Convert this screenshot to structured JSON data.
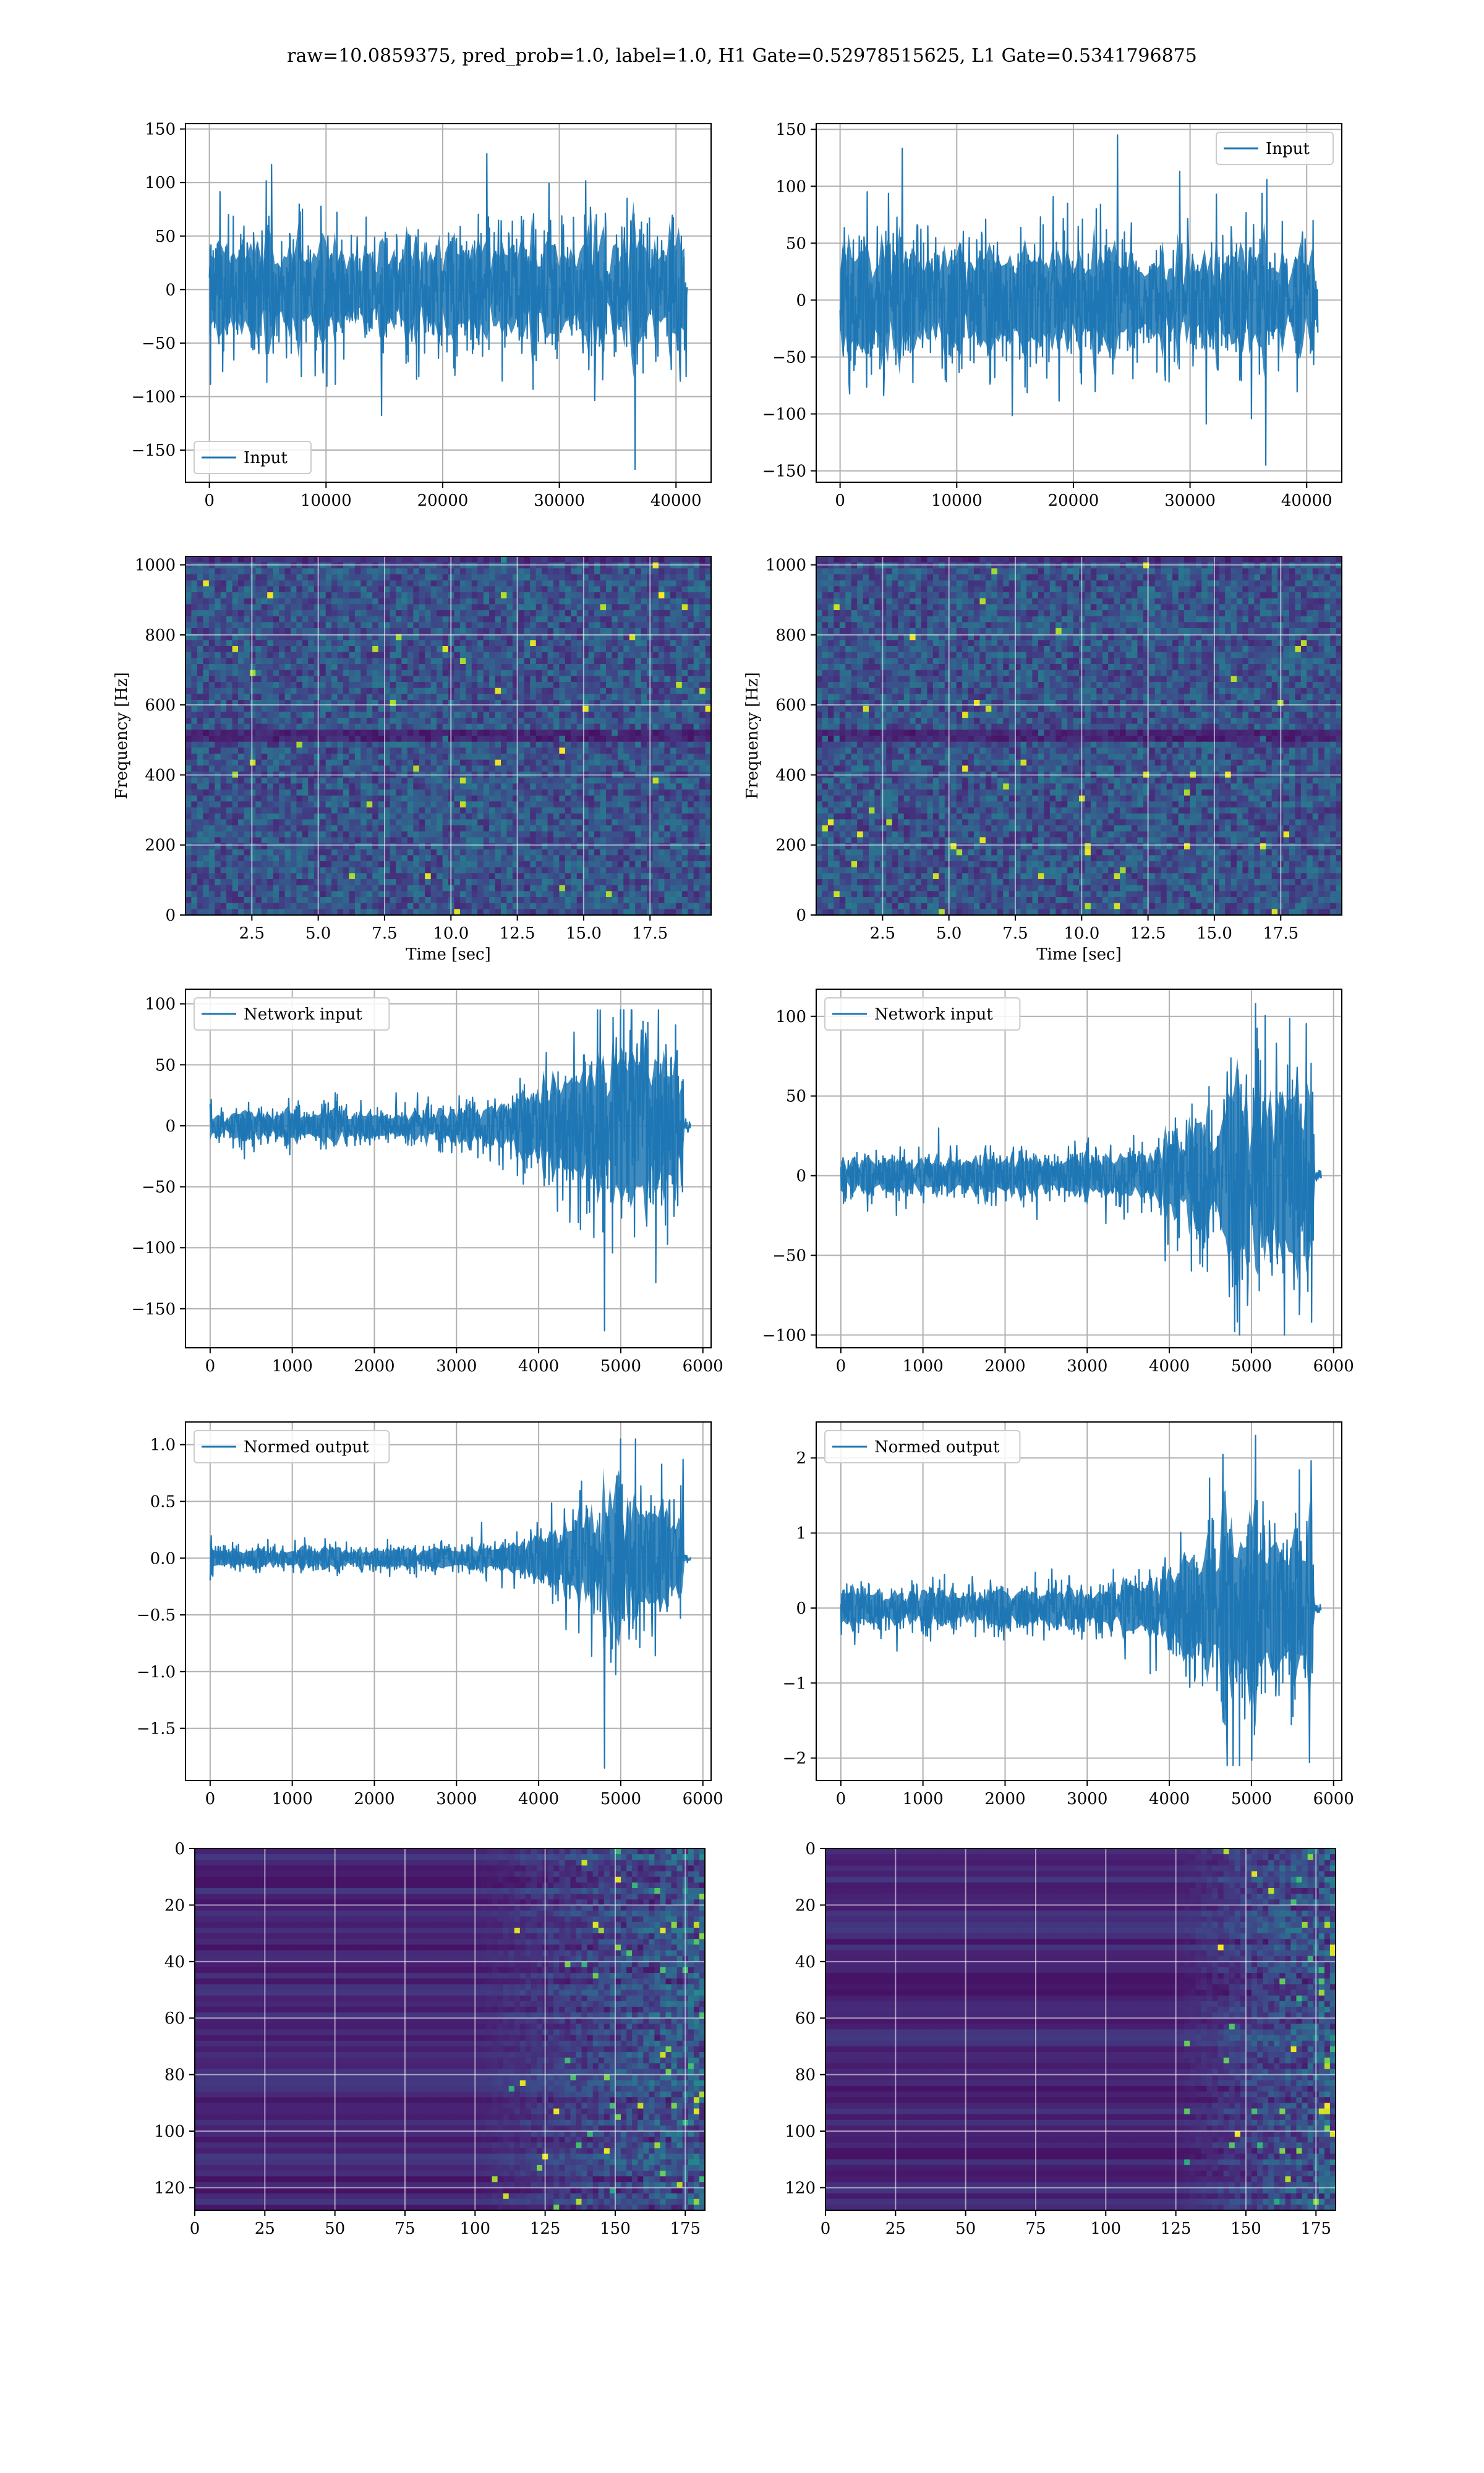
{
  "figure": {
    "suptitle": "raw=10.0859375, pred_prob=1.0, label=1.0, H1 Gate=0.52978515625, L1 Gate=0.5341796875",
    "line_color": "#1f77b4",
    "grid_color": "#b0b0b0"
  },
  "chart_data": [
    {
      "id": "h1-input",
      "type": "line",
      "series": [
        {
          "name": "Input"
        }
      ],
      "legend": "lower-left",
      "xlim": [
        -2048,
        43008
      ],
      "ylim": [
        -180,
        155
      ],
      "xticks": [
        0,
        10000,
        20000,
        30000,
        40000
      ],
      "yticks": [
        -150,
        -100,
        -50,
        0,
        50,
        100,
        150
      ],
      "xlabel": "",
      "ylabel": "",
      "grid": true,
      "signal": {
        "kind": "noise",
        "n": 40960,
        "amplitude": 35,
        "min": -168,
        "max": 127
      }
    },
    {
      "id": "l1-input",
      "type": "line",
      "series": [
        {
          "name": "Input"
        }
      ],
      "legend": "upper-right",
      "xlim": [
        -2048,
        43008
      ],
      "ylim": [
        -160,
        155
      ],
      "xticks": [
        0,
        10000,
        20000,
        30000,
        40000
      ],
      "yticks": [
        -150,
        -100,
        -50,
        0,
        50,
        100,
        150
      ],
      "xlabel": "",
      "ylabel": "",
      "grid": true,
      "signal": {
        "kind": "noise",
        "n": 40960,
        "amplitude": 33,
        "min": -145,
        "max": 145
      }
    },
    {
      "id": "h1-spectrogram",
      "type": "heatmap",
      "xlim": [
        0,
        19.8
      ],
      "ylim": [
        0,
        1024
      ],
      "xticks": [
        2.5,
        5.0,
        7.5,
        10.0,
        12.5,
        15.0,
        17.5
      ],
      "yticks": [
        0,
        200,
        400,
        600,
        800,
        1000
      ],
      "xlabel": "Time [sec]",
      "ylabel": "Frequency [Hz]",
      "grid": true,
      "colormap": "viridis"
    },
    {
      "id": "l1-spectrogram",
      "type": "heatmap",
      "xlim": [
        0,
        19.8
      ],
      "ylim": [
        0,
        1024
      ],
      "xticks": [
        2.5,
        5.0,
        7.5,
        10.0,
        12.5,
        15.0,
        17.5
      ],
      "yticks": [
        0,
        200,
        400,
        600,
        800,
        1000
      ],
      "xlabel": "Time [sec]",
      "ylabel": "Frequency [Hz]",
      "grid": true,
      "colormap": "viridis"
    },
    {
      "id": "h1-network-input",
      "type": "line",
      "series": [
        {
          "name": "Network input"
        }
      ],
      "legend": "upper-left",
      "xlim": [
        -300,
        6100
      ],
      "ylim": [
        -182,
        112
      ],
      "xticks": [
        0,
        1000,
        2000,
        3000,
        4000,
        5000,
        6000
      ],
      "yticks": [
        -150,
        -100,
        -50,
        0,
        50,
        100
      ],
      "xlabel": "",
      "ylabel": "",
      "grid": true,
      "signal": {
        "kind": "chirp",
        "n": 5760,
        "onset": 3000,
        "peak_at": 4800,
        "base_amp": 9,
        "peak_amp": 55,
        "tail_at": 5760,
        "end": 5850,
        "min": -168,
        "max": 95
      }
    },
    {
      "id": "l1-network-input",
      "type": "line",
      "series": [
        {
          "name": "Network input"
        }
      ],
      "legend": "upper-left",
      "xlim": [
        -300,
        6100
      ],
      "ylim": [
        -108,
        117
      ],
      "xticks": [
        0,
        1000,
        2000,
        3000,
        4000,
        5000,
        6000
      ],
      "yticks": [
        -100,
        -50,
        0,
        50,
        100
      ],
      "xlabel": "",
      "ylabel": "",
      "grid": true,
      "signal": {
        "kind": "chirp",
        "n": 5760,
        "onset": 3200,
        "peak_at": 4850,
        "base_amp": 8,
        "peak_amp": 45,
        "tail_at": 5760,
        "end": 5850,
        "min": -100,
        "max": 108
      }
    },
    {
      "id": "h1-normed-output",
      "type": "line",
      "series": [
        {
          "name": "Normed output"
        }
      ],
      "legend": "upper-left",
      "xlim": [
        -300,
        6100
      ],
      "ylim": [
        -1.96,
        1.2
      ],
      "xticks": [
        0,
        1000,
        2000,
        3000,
        4000,
        5000,
        6000
      ],
      "yticks": [
        -1.5,
        -1.0,
        -0.5,
        0.0,
        0.5,
        1.0
      ],
      "xlabel": "",
      "ylabel": "",
      "grid": true,
      "signal": {
        "kind": "chirp",
        "n": 5760,
        "onset": 3000,
        "peak_at": 4800,
        "base_amp": 0.06,
        "peak_amp": 0.42,
        "tail_at": 5760,
        "end": 5850,
        "min": -1.85,
        "max": 1.05
      }
    },
    {
      "id": "l1-normed-output",
      "type": "line",
      "series": [
        {
          "name": "Normed output"
        }
      ],
      "legend": "upper-left",
      "xlim": [
        -300,
        6100
      ],
      "ylim": [
        -2.3,
        2.48
      ],
      "xticks": [
        0,
        1000,
        2000,
        3000,
        4000,
        5000,
        6000
      ],
      "yticks": [
        -2,
        -1,
        0,
        1,
        2
      ],
      "xlabel": "",
      "ylabel": "",
      "grid": true,
      "signal": {
        "kind": "chirp",
        "n": 5760,
        "onset": 3200,
        "peak_at": 4850,
        "base_amp": 0.17,
        "peak_amp": 0.95,
        "tail_at": 5760,
        "end": 5850,
        "min": -2.1,
        "max": 2.3
      }
    },
    {
      "id": "h1-feature-map",
      "type": "heatmap",
      "xlim": [
        0,
        182
      ],
      "ylim": [
        128,
        0
      ],
      "xticks": [
        0,
        25,
        50,
        75,
        100,
        125,
        150,
        175
      ],
      "yticks": [
        0,
        20,
        40,
        60,
        80,
        100,
        120
      ],
      "xlabel": "",
      "ylabel": "",
      "grid": true,
      "colormap": "viridis",
      "activity_onset": 100
    },
    {
      "id": "l1-feature-map",
      "type": "heatmap",
      "xlim": [
        0,
        182
      ],
      "ylim": [
        128,
        0
      ],
      "xticks": [
        0,
        25,
        50,
        75,
        100,
        125,
        150,
        175
      ],
      "yticks": [
        0,
        20,
        40,
        60,
        80,
        100,
        120
      ],
      "xlabel": "",
      "ylabel": "",
      "grid": true,
      "colormap": "viridis",
      "activity_onset": 125
    }
  ]
}
